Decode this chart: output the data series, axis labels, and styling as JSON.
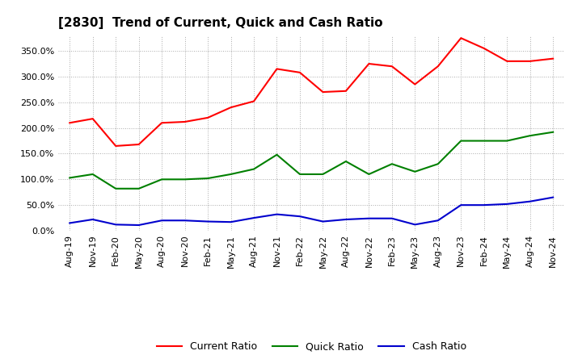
{
  "title": "[2830]  Trend of Current, Quick and Cash Ratio",
  "x_labels": [
    "Aug-19",
    "Nov-19",
    "Feb-20",
    "May-20",
    "Aug-20",
    "Nov-20",
    "Feb-21",
    "May-21",
    "Aug-21",
    "Nov-21",
    "Feb-22",
    "May-22",
    "Aug-22",
    "Nov-22",
    "Feb-23",
    "May-23",
    "Aug-23",
    "Nov-23",
    "Feb-24",
    "May-24",
    "Aug-24",
    "Nov-24"
  ],
  "current_ratio": [
    210,
    218,
    165,
    168,
    210,
    212,
    220,
    240,
    252,
    315,
    308,
    270,
    272,
    325,
    320,
    285,
    320,
    375,
    355,
    330,
    330,
    335
  ],
  "quick_ratio": [
    103,
    110,
    82,
    82,
    100,
    100,
    102,
    110,
    120,
    148,
    110,
    110,
    135,
    110,
    130,
    115,
    130,
    175,
    175,
    175,
    185,
    192
  ],
  "cash_ratio": [
    15,
    22,
    12,
    11,
    20,
    20,
    18,
    17,
    25,
    32,
    28,
    18,
    22,
    24,
    24,
    12,
    20,
    50,
    50,
    52,
    57,
    65
  ],
  "line_color_current": "#FF0000",
  "line_color_quick": "#008000",
  "line_color_cash": "#0000CD",
  "background_color": "#FFFFFF",
  "plot_bg_color": "#FFFFFF",
  "grid_color": "#AAAAAA",
  "ylim": [
    0,
    380
  ],
  "yticks": [
    0,
    50,
    100,
    150,
    200,
    250,
    300,
    350
  ],
  "legend_labels": [
    "Current Ratio",
    "Quick Ratio",
    "Cash Ratio"
  ],
  "title_fontsize": 11,
  "tick_fontsize": 8,
  "legend_fontsize": 9
}
